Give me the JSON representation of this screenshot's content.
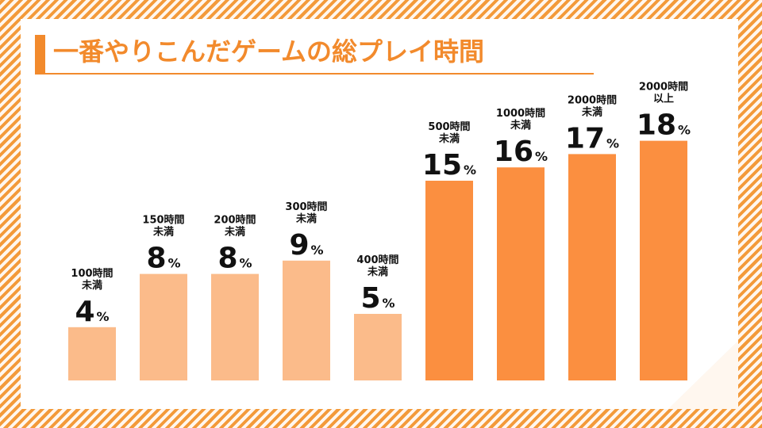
{
  "title": "一番やりこんだゲームの総プレイ時間",
  "colors": {
    "accent": "#f28a2c",
    "bar_light": "#fbbb8a",
    "bar_dark": "#fb8f40",
    "label": "#111111"
  },
  "chart_data": {
    "type": "bar",
    "title": "一番やりこんだゲームの総プレイ時間",
    "categories": [
      "100時間未満",
      "150時間未満",
      "200時間未満",
      "300時間未満",
      "400時間未満",
      "500時間未満",
      "1000時間未満",
      "2000時間未満",
      "2000時間以上"
    ],
    "category_lines": [
      [
        "100時間",
        "未満"
      ],
      [
        "150時間",
        "未満"
      ],
      [
        "200時間",
        "未満"
      ],
      [
        "300時間",
        "未満"
      ],
      [
        "400時間",
        "未満"
      ],
      [
        "500時間",
        "未満"
      ],
      [
        "1000時間",
        "未満"
      ],
      [
        "2000時間",
        "未満"
      ],
      [
        "2000時間",
        "以上"
      ]
    ],
    "values": [
      4,
      8,
      8,
      9,
      5,
      15,
      16,
      17,
      18
    ],
    "value_suffix": "%",
    "highlight_from_index": 5,
    "ylim": [
      0,
      20
    ],
    "grid": false,
    "legend": "none"
  }
}
